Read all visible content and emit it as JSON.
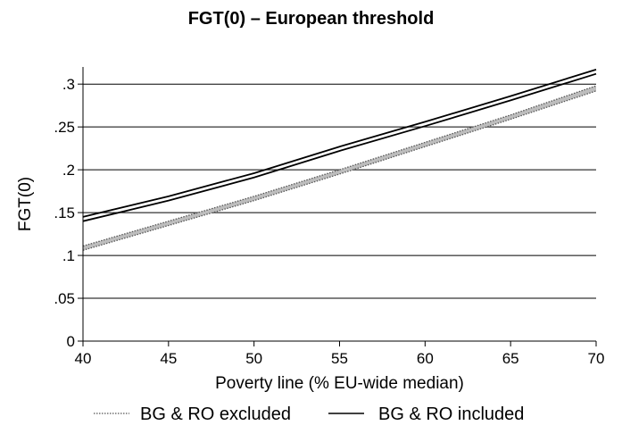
{
  "chart_data": {
    "type": "line",
    "title": "FGT(0) – European threshold",
    "xlabel": "Poverty line (% EU-wide median)",
    "ylabel": "FGT(0)",
    "xlim": [
      40,
      70
    ],
    "ylim": [
      0,
      0.32
    ],
    "x_ticks": [
      40,
      45,
      50,
      55,
      60,
      65,
      70
    ],
    "x_tick_labels": [
      "40",
      "45",
      "50",
      "55",
      "60",
      "65",
      "70"
    ],
    "y_ticks": [
      0,
      0.05,
      0.1,
      0.15,
      0.2,
      0.25,
      0.3
    ],
    "y_tick_labels": [
      "0",
      ".05",
      ".1",
      ".15",
      ".2",
      ".25",
      ".3"
    ],
    "grid": "horizontal",
    "legend_position": "bottom",
    "series": [
      {
        "name": "BG & RO excluded",
        "style": "dotted-band",
        "color": "#555555",
        "x": [
          40,
          45,
          50,
          55,
          60,
          65,
          70
        ],
        "lower": [
          0.106,
          0.135,
          0.164,
          0.195,
          0.227,
          0.259,
          0.292
        ],
        "upper": [
          0.111,
          0.14,
          0.169,
          0.2,
          0.232,
          0.264,
          0.298
        ]
      },
      {
        "name": "BG & RO included",
        "style": "solid-band",
        "color": "#000000",
        "x": [
          40,
          45,
          50,
          55,
          60,
          65,
          70
        ],
        "lower": [
          0.14,
          0.164,
          0.191,
          0.222,
          0.251,
          0.281,
          0.312
        ],
        "upper": [
          0.145,
          0.169,
          0.196,
          0.227,
          0.256,
          0.286,
          0.317
        ]
      }
    ]
  }
}
